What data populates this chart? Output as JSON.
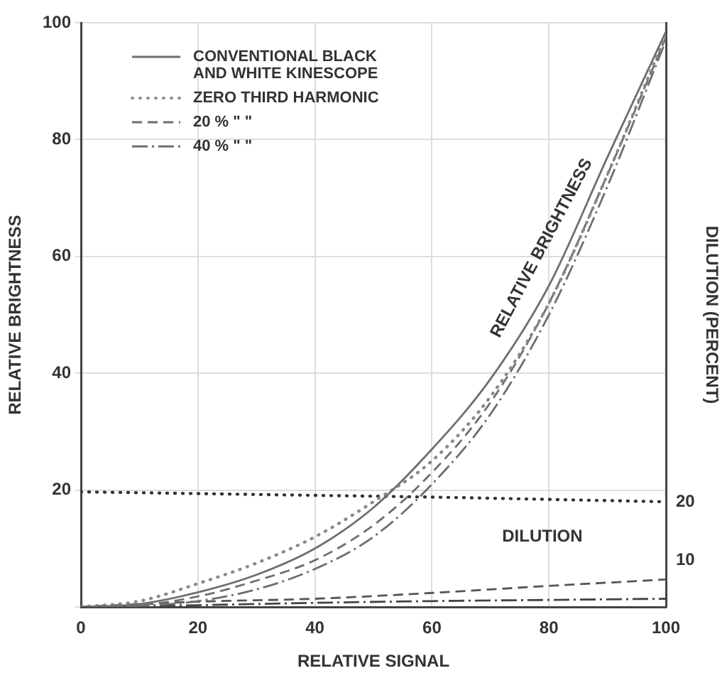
{
  "chart_data": {
    "type": "line",
    "xlabel": "RELATIVE SIGNAL",
    "ylabel": "RELATIVE BRIGHTNESS",
    "y2label": "DILUTION (PERCENT)",
    "xlim": [
      0,
      100
    ],
    "xticks": [
      0,
      20,
      40,
      60,
      80,
      100
    ],
    "ylim": [
      0,
      100
    ],
    "yticks": [
      {
        "value": 0,
        "label": null
      },
      20,
      40,
      60,
      80,
      100
    ],
    "y2lim": [
      2,
      102
    ],
    "y2ticks": [
      10,
      20
    ],
    "grid": true,
    "legend": "top left",
    "marker": "none",
    "annotations": [
      "RELATIVE BRIGHTNESS",
      "DILUTION"
    ],
    "series": [
      {
        "name": "CONVENTIONAL BLACK AND WHITE KINESCOPE",
        "color": "#6e6e6e",
        "line_style": "solid",
        "x": [
          0,
          10,
          20,
          30,
          40,
          50,
          60,
          70,
          80,
          90,
          100
        ],
        "values": [
          0,
          0.5,
          2.5,
          5.5,
          10,
          17,
          27,
          39,
          55,
          77,
          98.5
        ]
      },
      {
        "name": "ZERO THIRD HARMONIC",
        "color": "#8a8a8a",
        "line_style": "dotted",
        "x": [
          0,
          10,
          20,
          30,
          40,
          50,
          60,
          70,
          80,
          90,
          100
        ],
        "values": [
          0,
          1,
          4,
          7.5,
          12,
          18,
          25,
          36,
          52,
          74,
          98
        ]
      },
      {
        "name": "20 %   \"   \"",
        "color": "#6e6e6e",
        "line_style": "dashed",
        "x": [
          0,
          10,
          20,
          30,
          40,
          50,
          60,
          70,
          80,
          90,
          100
        ],
        "values": [
          0,
          0.3,
          1.8,
          4.5,
          8,
          14,
          23,
          35,
          52,
          74,
          97.5
        ]
      },
      {
        "name": "40 %   \"   \"",
        "color": "#6e6e6e",
        "line_style": "dashdot",
        "x": [
          0,
          10,
          20,
          30,
          40,
          50,
          60,
          70,
          80,
          90,
          100
        ],
        "values": [
          0,
          0.2,
          1,
          3,
          6.5,
          12,
          21,
          33,
          50,
          72,
          97
        ]
      },
      {
        "color": "#333333",
        "line_style": "dotted",
        "axis": "y2",
        "x": [
          0,
          20,
          40,
          60,
          80,
          100
        ],
        "values": [
          21.7,
          21.4,
          21.1,
          20.8,
          20.4,
          20
        ]
      },
      {
        "color": "#555555",
        "line_style": "dashed",
        "axis": "y2",
        "x": [
          0,
          20,
          40,
          60,
          80,
          100
        ],
        "values": [
          2,
          2.9,
          3.4,
          4.4,
          5.6,
          6.7
        ]
      },
      {
        "color": "#444444",
        "line_style": "dashdot",
        "axis": "y2",
        "x": [
          0,
          20,
          40,
          60,
          80,
          100
        ],
        "values": [
          2,
          2.3,
          2.7,
          3,
          3.2,
          3.4
        ]
      }
    ]
  }
}
